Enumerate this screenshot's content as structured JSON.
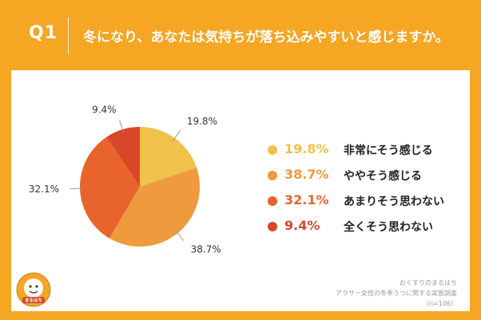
{
  "header": {
    "question_label": "Q1",
    "question_text": "冬になり、あなたは気持ちが落ち込みやすいと感じますか。"
  },
  "colors": {
    "background": "#f5a623",
    "card": "#ffffff"
  },
  "chart_data": {
    "type": "pie",
    "title": "冬になり、あなたは気持ちが落ち込みやすいと感じますか。",
    "start": "top",
    "direction": "clockwise",
    "legend_position": "right",
    "slices": [
      {
        "label": "非常にそう感じる",
        "value": 19.8,
        "text": "19.8%",
        "color": "#f0c24a"
      },
      {
        "label": "ややそう感じる",
        "value": 38.7,
        "text": "38.7%",
        "color": "#ef9a3d"
      },
      {
        "label": "あまりそう思わない",
        "value": 32.1,
        "text": "32.1%",
        "color": "#e8642c"
      },
      {
        "label": "全くそう思わない",
        "value": 9.4,
        "text": "9.4%",
        "color": "#d8472a"
      }
    ]
  },
  "source": {
    "line1": "おくすりのまるはち",
    "line2": "アラサー女性の冬季うつに関する実態調査",
    "line3": "（n=106）"
  },
  "logo": {
    "text": "まるはち"
  }
}
